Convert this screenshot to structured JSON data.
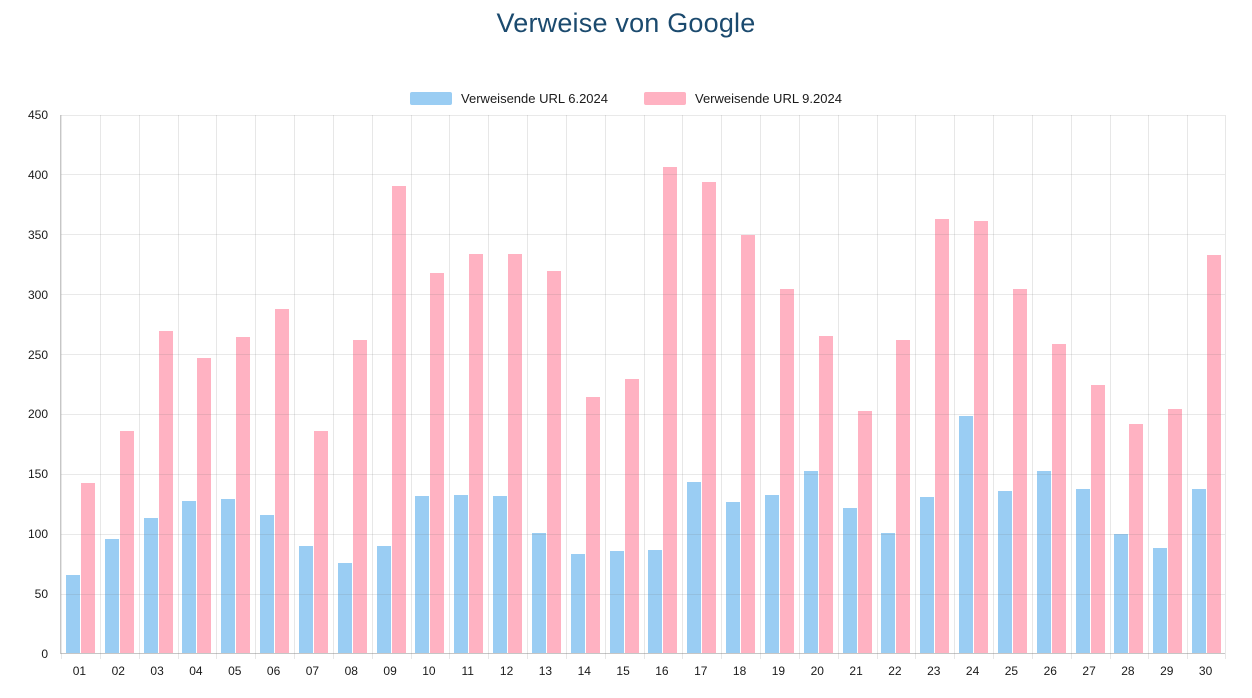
{
  "title": "Verweise von Google",
  "colors": {
    "title": "#1B4A6E",
    "series1": "#9ACDF3",
    "series2": "#FFB2C2",
    "gridline": "#E0E0E0",
    "axis": "#C6C6C6",
    "tick_text": "#1A1A1A"
  },
  "chart_data": {
    "type": "bar",
    "title": "Verweise von Google",
    "xlabel": "",
    "ylabel": "",
    "ylim": [
      0,
      450
    ],
    "y_ticks": [
      0,
      50,
      100,
      150,
      200,
      250,
      300,
      350,
      400,
      450
    ],
    "grid": "on",
    "legend_position": "top-center",
    "categories": [
      "01",
      "02",
      "03",
      "04",
      "05",
      "06",
      "07",
      "08",
      "09",
      "10",
      "11",
      "12",
      "13",
      "14",
      "15",
      "16",
      "17",
      "18",
      "19",
      "20",
      "21",
      "22",
      "23",
      "24",
      "25",
      "26",
      "27",
      "28",
      "29",
      "30"
    ],
    "series": [
      {
        "name": "Verweisende URL 6.2024",
        "color": "#9ACDF3",
        "values": [
          65,
          95,
          113,
          127,
          129,
          115,
          89,
          75,
          89,
          131,
          132,
          131,
          100,
          83,
          85,
          86,
          143,
          126,
          132,
          152,
          121,
          100,
          130,
          198,
          135,
          152,
          137,
          99,
          88,
          137
        ]
      },
      {
        "name": "Verweisende URL 9.2024",
        "color": "#FFB2C2",
        "values": [
          142,
          185,
          269,
          246,
          264,
          287,
          185,
          261,
          390,
          317,
          333,
          333,
          319,
          214,
          229,
          406,
          393,
          349,
          304,
          265,
          202,
          261,
          362,
          361,
          304,
          258,
          224,
          191,
          204,
          332
        ]
      }
    ]
  }
}
